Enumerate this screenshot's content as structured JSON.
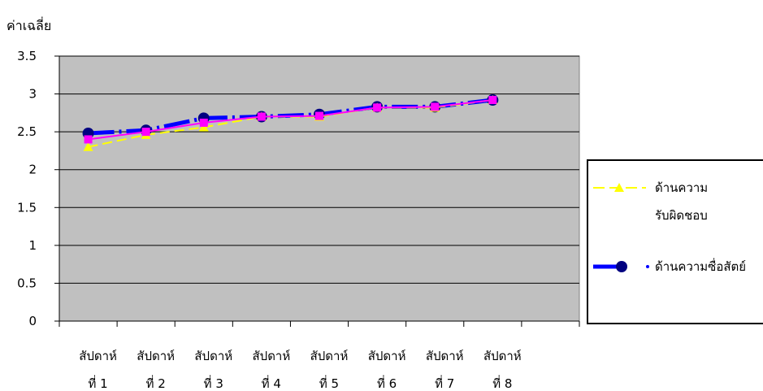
{
  "chart_data": {
    "type": "line",
    "title": "",
    "ylabel": "ค่าเฉลี่ย",
    "xlabel": "",
    "ylim": [
      0,
      3.5
    ],
    "yticks": [
      0,
      0.5,
      1,
      1.5,
      2,
      2.5,
      3,
      3.5
    ],
    "grid": "horizontal",
    "legend_position": "right",
    "categories": [
      [
        "สัปดาห์",
        "ที่ 1"
      ],
      [
        "สัปดาห์",
        "ที่ 2"
      ],
      [
        "สัปดาห์",
        "ที่ 3"
      ],
      [
        "สัปดาห์",
        "ที่ 4"
      ],
      [
        "สัปดาห์",
        "ที่ 5"
      ],
      [
        "สัปดาห์",
        "ที่ 6"
      ],
      [
        "สัปดาห์",
        "ที่ 7"
      ],
      [
        "สัปดาห์",
        "ที่ 8"
      ]
    ],
    "series": [
      {
        "name": [
          "ด้านความ",
          "รับผิดชอบ"
        ],
        "values": [
          2.3,
          2.46,
          2.56,
          2.7,
          2.7,
          2.82,
          2.82,
          2.92
        ],
        "color": "#ffff00",
        "marker": "triangle",
        "dash": true
      },
      {
        "name": [
          "ด้านความซื่อสัตย์"
        ],
        "values": [
          2.48,
          2.52,
          2.68,
          2.7,
          2.73,
          2.83,
          2.83,
          2.92
        ],
        "color": "#0000ff",
        "marker_color": "#000080",
        "marker": "circle",
        "dash": true
      },
      {
        "name": [],
        "values": [
          2.4,
          2.5,
          2.62,
          2.7,
          2.71,
          2.82,
          2.83,
          2.92
        ],
        "color": "#ff00ff",
        "marker": "square",
        "dash": false
      }
    ],
    "colors": {
      "plot_background": "#c0c0c0",
      "gridline": "#000000"
    }
  }
}
